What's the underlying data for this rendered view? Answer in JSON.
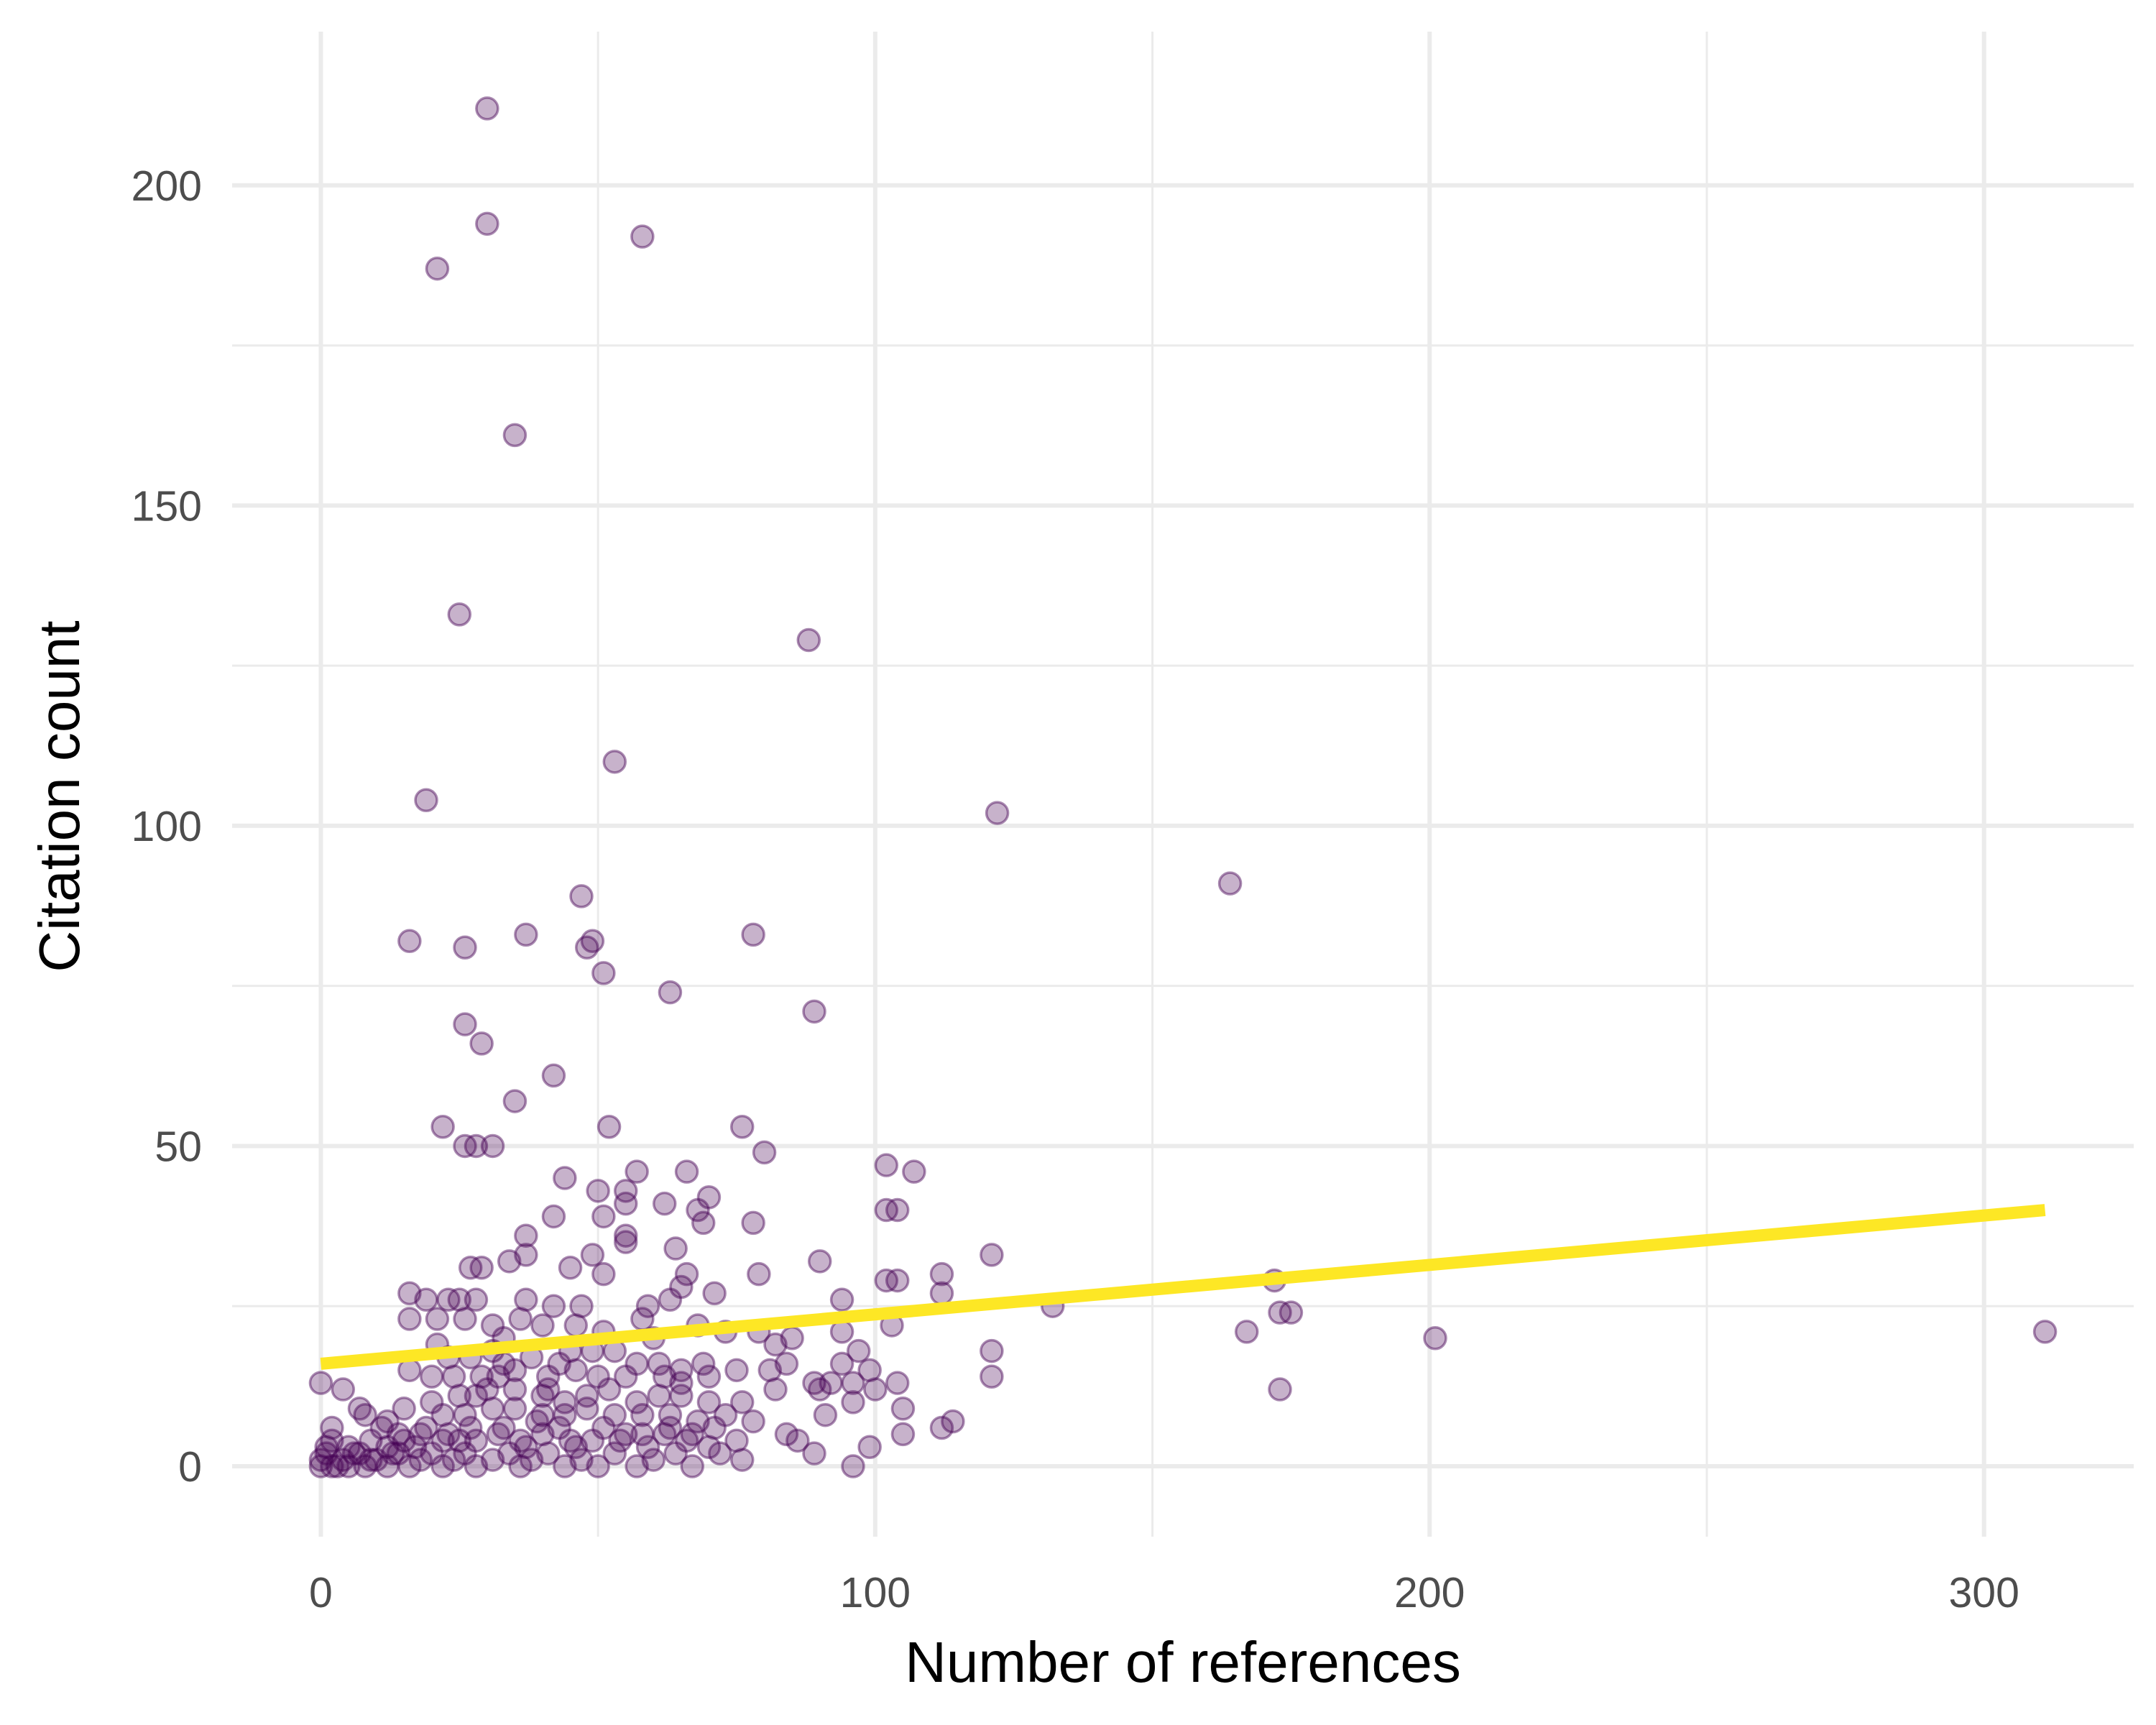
{
  "chart_data": {
    "type": "scatter",
    "title": "",
    "xlabel": "Number of references",
    "ylabel": "Citation count",
    "xlim": [
      -16,
      327
    ],
    "ylim": [
      -11,
      224
    ],
    "x_ticks": [
      0,
      100,
      200,
      300
    ],
    "y_ticks": [
      0,
      50,
      100,
      150,
      200
    ],
    "grid": true,
    "legend": "none",
    "colors": {
      "points": "#440154",
      "trend_line": "#FDE725",
      "grid": "#EBEBEB",
      "tick_text": "#4D4D4D"
    },
    "trend_line": {
      "x": [
        0,
        311
      ],
      "y": [
        16,
        40
      ]
    },
    "points": [
      [
        30,
        212
      ],
      [
        30,
        194
      ],
      [
        21,
        187
      ],
      [
        58,
        192
      ],
      [
        35,
        161
      ],
      [
        25,
        133
      ],
      [
        88,
        129
      ],
      [
        53,
        110
      ],
      [
        19,
        104
      ],
      [
        122,
        102
      ],
      [
        164,
        91
      ],
      [
        47,
        89
      ],
      [
        16,
        82
      ],
      [
        26,
        81
      ],
      [
        37,
        83
      ],
      [
        48,
        81
      ],
      [
        49,
        82
      ],
      [
        78,
        83
      ],
      [
        51,
        77
      ],
      [
        63,
        74
      ],
      [
        89,
        71
      ],
      [
        26,
        69
      ],
      [
        29,
        66
      ],
      [
        42,
        61
      ],
      [
        35,
        57
      ],
      [
        22,
        53
      ],
      [
        52,
        53
      ],
      [
        76,
        53
      ],
      [
        26,
        50
      ],
      [
        28,
        50
      ],
      [
        31,
        50
      ],
      [
        80,
        49
      ],
      [
        102,
        47
      ],
      [
        44,
        45
      ],
      [
        57,
        46
      ],
      [
        66,
        46
      ],
      [
        107,
        46
      ],
      [
        50,
        43
      ],
      [
        55,
        43
      ],
      [
        55,
        41
      ],
      [
        62,
        41
      ],
      [
        68,
        40
      ],
      [
        70,
        42
      ],
      [
        102,
        40
      ],
      [
        104,
        40
      ],
      [
        42,
        39
      ],
      [
        51,
        39
      ],
      [
        69,
        38
      ],
      [
        78,
        38
      ],
      [
        37,
        36
      ],
      [
        55,
        35
      ],
      [
        55,
        36
      ],
      [
        64,
        34
      ],
      [
        37,
        33
      ],
      [
        49,
        33
      ],
      [
        34,
        32
      ],
      [
        90,
        32
      ],
      [
        121,
        33
      ],
      [
        29,
        31
      ],
      [
        45,
        31
      ],
      [
        51,
        30
      ],
      [
        66,
        30
      ],
      [
        79,
        30
      ],
      [
        104,
        29
      ],
      [
        112,
        30
      ],
      [
        172,
        29
      ],
      [
        16,
        27
      ],
      [
        19,
        26
      ],
      [
        23,
        26
      ],
      [
        28,
        26
      ],
      [
        37,
        26
      ],
      [
        25,
        26
      ],
      [
        42,
        25
      ],
      [
        47,
        25
      ],
      [
        59,
        25
      ],
      [
        63,
        26
      ],
      [
        65,
        28
      ],
      [
        71,
        27
      ],
      [
        94,
        26
      ],
      [
        102,
        29
      ],
      [
        112,
        27
      ],
      [
        132,
        25
      ],
      [
        173,
        24
      ],
      [
        175,
        24
      ],
      [
        16,
        23
      ],
      [
        21,
        23
      ],
      [
        26,
        23
      ],
      [
        31,
        22
      ],
      [
        36,
        23
      ],
      [
        40,
        22
      ],
      [
        46,
        22
      ],
      [
        51,
        21
      ],
      [
        58,
        23
      ],
      [
        68,
        22
      ],
      [
        73,
        21
      ],
      [
        79,
        21
      ],
      [
        85,
        20
      ],
      [
        94,
        21
      ],
      [
        103,
        22
      ],
      [
        167,
        21
      ],
      [
        201,
        20
      ],
      [
        311,
        21
      ],
      [
        21,
        19
      ],
      [
        23,
        17
      ],
      [
        27,
        17
      ],
      [
        31,
        18
      ],
      [
        33,
        16
      ],
      [
        38,
        17
      ],
      [
        43,
        16
      ],
      [
        49,
        18
      ],
      [
        53,
        18
      ],
      [
        57,
        16
      ],
      [
        61,
        16
      ],
      [
        65,
        15
      ],
      [
        69,
        16
      ],
      [
        82,
        19
      ],
      [
        84,
        16
      ],
      [
        94,
        16
      ],
      [
        97,
        18
      ],
      [
        121,
        18
      ],
      [
        16,
        15
      ],
      [
        20,
        14
      ],
      [
        24,
        14
      ],
      [
        29,
        14
      ],
      [
        32,
        14
      ],
      [
        35,
        15
      ],
      [
        41,
        14
      ],
      [
        46,
        15
      ],
      [
        50,
        14
      ],
      [
        55,
        14
      ],
      [
        62,
        14
      ],
      [
        65,
        13
      ],
      [
        70,
        14
      ],
      [
        75,
        15
      ],
      [
        81,
        15
      ],
      [
        89,
        13
      ],
      [
        92,
        13
      ],
      [
        96,
        13
      ],
      [
        99,
        15
      ],
      [
        104,
        13
      ],
      [
        121,
        14
      ],
      [
        173,
        12
      ],
      [
        20,
        10
      ],
      [
        25,
        11
      ],
      [
        28,
        11
      ],
      [
        30,
        12
      ],
      [
        35,
        12
      ],
      [
        40,
        11
      ],
      [
        44,
        10
      ],
      [
        48,
        11
      ],
      [
        52,
        12
      ],
      [
        57,
        10
      ],
      [
        61,
        11
      ],
      [
        65,
        11
      ],
      [
        70,
        10
      ],
      [
        76,
        10
      ],
      [
        82,
        12
      ],
      [
        90,
        12
      ],
      [
        96,
        10
      ],
      [
        100,
        12
      ],
      [
        105,
        9
      ],
      [
        8,
        8
      ],
      [
        12,
        7
      ],
      [
        15,
        9
      ],
      [
        22,
        8
      ],
      [
        26,
        8
      ],
      [
        31,
        9
      ],
      [
        35,
        9
      ],
      [
        40,
        8
      ],
      [
        44,
        8
      ],
      [
        48,
        9
      ],
      [
        53,
        8
      ],
      [
        58,
        8
      ],
      [
        63,
        8
      ],
      [
        68,
        7
      ],
      [
        73,
        8
      ],
      [
        78,
        7
      ],
      [
        91,
        8
      ],
      [
        114,
        7
      ],
      [
        112,
        6
      ],
      [
        2,
        4
      ],
      [
        5,
        3
      ],
      [
        9,
        4
      ],
      [
        12,
        3
      ],
      [
        15,
        4
      ],
      [
        18,
        5
      ],
      [
        22,
        4
      ],
      [
        25,
        4
      ],
      [
        28,
        4
      ],
      [
        32,
        5
      ],
      [
        36,
        4
      ],
      [
        40,
        5
      ],
      [
        45,
        4
      ],
      [
        49,
        4
      ],
      [
        54,
        4
      ],
      [
        58,
        5
      ],
      [
        62,
        5
      ],
      [
        66,
        4
      ],
      [
        70,
        3
      ],
      [
        75,
        4
      ],
      [
        84,
        5
      ],
      [
        86,
        4
      ],
      [
        105,
        5
      ],
      [
        99,
        3
      ],
      [
        0,
        0
      ],
      [
        0,
        1
      ],
      [
        1,
        2
      ],
      [
        2,
        0
      ],
      [
        4,
        1
      ],
      [
        6,
        2
      ],
      [
        8,
        0
      ],
      [
        10,
        1
      ],
      [
        12,
        0
      ],
      [
        14,
        2
      ],
      [
        16,
        0
      ],
      [
        18,
        1
      ],
      [
        20,
        2
      ],
      [
        22,
        0
      ],
      [
        24,
        1
      ],
      [
        26,
        2
      ],
      [
        28,
        0
      ],
      [
        31,
        1
      ],
      [
        34,
        2
      ],
      [
        36,
        0
      ],
      [
        38,
        1
      ],
      [
        41,
        2
      ],
      [
        44,
        0
      ],
      [
        47,
        1
      ],
      [
        50,
        0
      ],
      [
        53,
        2
      ],
      [
        57,
        0
      ],
      [
        60,
        1
      ],
      [
        64,
        2
      ],
      [
        67,
        0
      ],
      [
        72,
        2
      ],
      [
        76,
        1
      ],
      [
        89,
        2
      ],
      [
        96,
        0
      ],
      [
        0,
        13
      ],
      [
        4,
        12
      ],
      [
        7,
        9
      ],
      [
        11,
        6
      ],
      [
        14,
        5
      ],
      [
        2,
        6
      ],
      [
        3,
        0
      ],
      [
        1,
        3
      ],
      [
        5,
        0
      ],
      [
        7,
        2
      ],
      [
        9,
        1
      ],
      [
        13,
        2
      ],
      [
        17,
        3
      ],
      [
        19,
        6
      ],
      [
        23,
        5
      ],
      [
        27,
        6
      ],
      [
        33,
        6
      ],
      [
        37,
        3
      ],
      [
        39,
        7
      ],
      [
        43,
        6
      ],
      [
        46,
        3
      ],
      [
        51,
        6
      ],
      [
        55,
        5
      ],
      [
        59,
        3
      ],
      [
        63,
        6
      ],
      [
        67,
        5
      ],
      [
        71,
        6
      ],
      [
        33,
        20
      ],
      [
        27,
        31
      ],
      [
        45,
        18
      ],
      [
        60,
        20
      ],
      [
        41,
        12
      ]
    ]
  }
}
